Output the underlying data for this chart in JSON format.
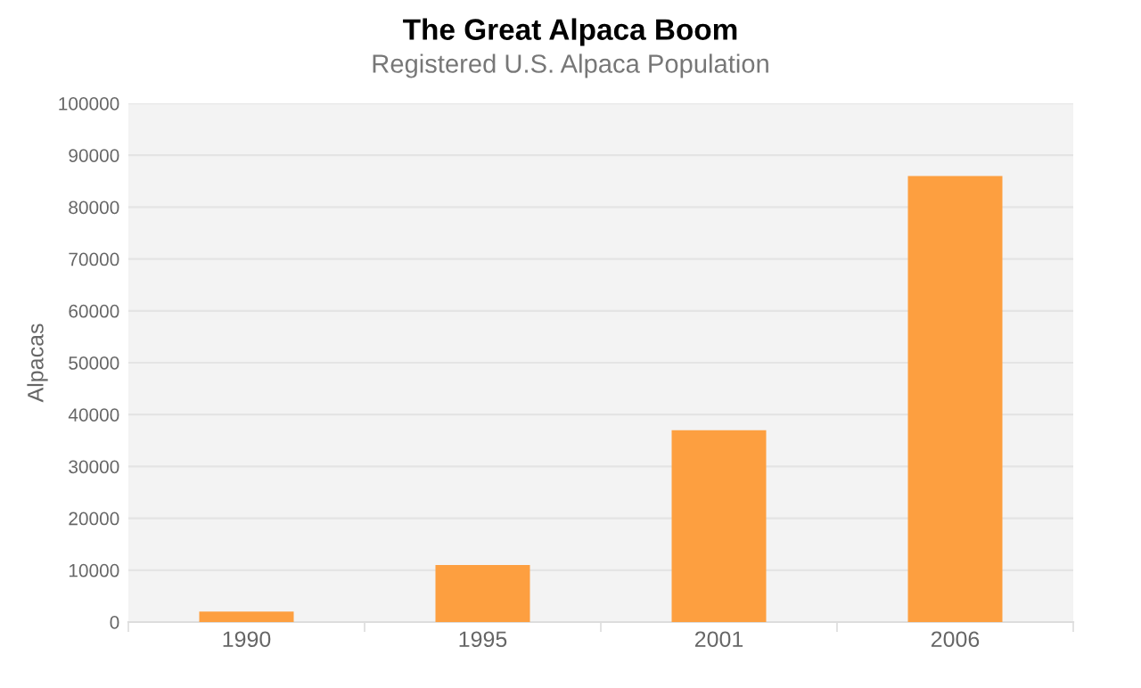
{
  "chart_data": {
    "type": "bar",
    "title": "The Great Alpaca Boom",
    "subtitle": "Registered U.S. Alpaca Population",
    "ylabel": "Alpacas",
    "categories": [
      "1990",
      "1995",
      "2001",
      "2006"
    ],
    "values": [
      2000,
      11000,
      37000,
      86000
    ],
    "color": "#fd9f40",
    "ylim": [
      0,
      100000
    ],
    "yticks": [
      0,
      10000,
      20000,
      30000,
      40000,
      50000,
      60000,
      70000,
      80000,
      90000,
      100000
    ],
    "grid": "y",
    "legend": false
  }
}
